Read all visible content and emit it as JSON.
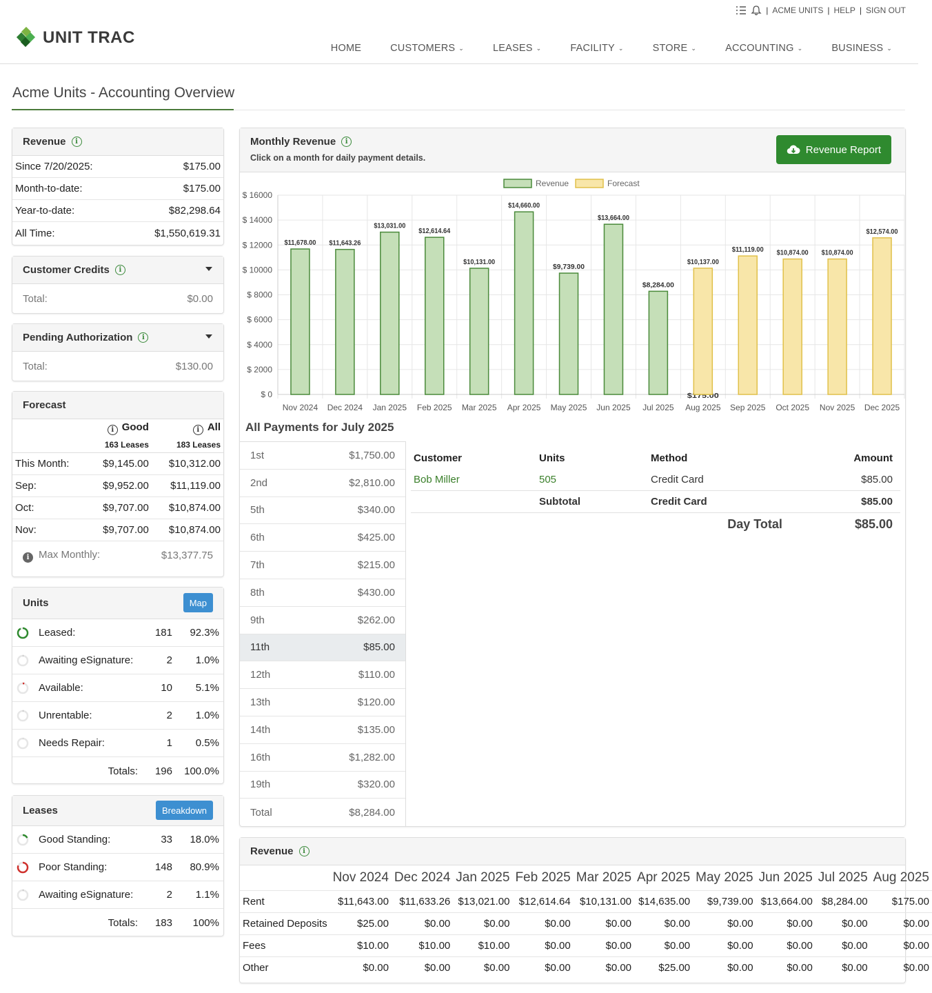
{
  "topbar": {
    "org": "ACME UNITS",
    "help": "HELP",
    "signout": "SIGN OUT",
    "icons": [
      "tasks-icon",
      "bell-icon"
    ]
  },
  "brand": {
    "name": "UNIT TRAC",
    "colors": {
      "primary": "#2f8a2f",
      "accent_blue": "#3d8fd1",
      "revenue_fill": "#c5dfb8",
      "revenue_stroke": "#4a8a3a",
      "forecast_fill": "#f8e6a9",
      "forecast_stroke": "#e0c04a"
    }
  },
  "nav": {
    "items": [
      "HOME",
      "CUSTOMERS",
      "LEASES",
      "FACILITY",
      "STORE",
      "ACCOUNTING",
      "BUSINESS"
    ]
  },
  "page": {
    "title": "Acme Units - Accounting Overview"
  },
  "revenue_panel": {
    "title": "Revenue",
    "rows": [
      {
        "label": "Since 7/20/2025:",
        "value": "$175.00"
      },
      {
        "label": "Month-to-date:",
        "value": "$175.00"
      },
      {
        "label": "Year-to-date:",
        "value": "$82,298.64"
      },
      {
        "label": "All Time:",
        "value": "$1,550,619.31"
      }
    ]
  },
  "credits": {
    "title": "Customer Credits",
    "total_label": "Total:",
    "total": "$0.00"
  },
  "pending": {
    "title": "Pending Authorization",
    "total_label": "Total:",
    "total": "$130.00"
  },
  "forecast": {
    "title": "Forecast",
    "col_good": "Good",
    "col_all": "All",
    "good_leases": "163 Leases",
    "all_leases": "183 Leases",
    "rows": [
      {
        "label": "This Month:",
        "good": "$9,145.00",
        "all": "$10,312.00"
      },
      {
        "label": "Sep:",
        "good": "$9,952.00",
        "all": "$11,119.00"
      },
      {
        "label": "Oct:",
        "good": "$9,707.00",
        "all": "$10,874.00"
      },
      {
        "label": "Nov:",
        "good": "$9,707.00",
        "all": "$10,874.00"
      }
    ],
    "max_label": "Max Monthly:",
    "max": "$13,377.75"
  },
  "units": {
    "title": "Units",
    "map_button": "Map",
    "rows": [
      {
        "label": "Leased:",
        "count": "181",
        "pct": "92.3%",
        "fraction": 0.923,
        "color": "#2f8a2f"
      },
      {
        "label": "Awaiting eSignature:",
        "count": "2",
        "pct": "1.0%",
        "fraction": 0.01,
        "color": "#888888"
      },
      {
        "label": "Available:",
        "count": "10",
        "pct": "5.1%",
        "fraction": 0.051,
        "color": "#d0312d"
      },
      {
        "label": "Unrentable:",
        "count": "2",
        "pct": "1.0%",
        "fraction": 0.01,
        "color": "#888888"
      },
      {
        "label": "Needs Repair:",
        "count": "1",
        "pct": "0.5%",
        "fraction": 0.005,
        "color": "#888888"
      }
    ],
    "totals_label": "Totals:",
    "totals_count": "196",
    "totals_pct": "100.0%"
  },
  "leases": {
    "title": "Leases",
    "breakdown_button": "Breakdown",
    "rows": [
      {
        "label": "Good Standing:",
        "count": "33",
        "pct": "18.0%",
        "fraction": 0.18,
        "color": "#2f8a2f"
      },
      {
        "label": "Poor Standing:",
        "count": "148",
        "pct": "80.9%",
        "fraction": 0.809,
        "color": "#d0312d"
      },
      {
        "label": "Awaiting eSignature:",
        "count": "2",
        "pct": "1.1%",
        "fraction": 0.011,
        "color": "#888888"
      }
    ],
    "totals_label": "Totals:",
    "totals_count": "183",
    "totals_pct": "100%"
  },
  "monthly": {
    "title": "Monthly Revenue",
    "subtitle": "Click on a month for daily payment details.",
    "report_button": "Revenue Report"
  },
  "chart_data": {
    "type": "bar",
    "title": "",
    "legend": [
      "Revenue",
      "Forecast"
    ],
    "legend_position": "top",
    "categories": [
      "Nov 2024",
      "Dec 2024",
      "Jan 2025",
      "Feb 2025",
      "Mar 2025",
      "Apr 2025",
      "May 2025",
      "Jun 2025",
      "Jul 2025",
      "Aug 2025",
      "Sep 2025",
      "Oct 2025",
      "Nov 2025",
      "Dec 2025"
    ],
    "series": [
      {
        "name": "Revenue",
        "values": [
          11678,
          11643.26,
          13031,
          12614.64,
          10131,
          14660,
          9739,
          13664,
          8284,
          175,
          null,
          null,
          null,
          null
        ],
        "labels": [
          "$11,678.00",
          "$11,643.26",
          "$13,031.00",
          "$12,614.64",
          "$10,131.00",
          "$14,660.00",
          "$9,739.00",
          "$13,664.00",
          "$8,284.00",
          "$175.00",
          "",
          "",
          "",
          ""
        ]
      },
      {
        "name": "Forecast",
        "values": [
          null,
          null,
          null,
          null,
          null,
          null,
          null,
          null,
          null,
          10137,
          11119,
          10874,
          10874,
          12574
        ],
        "labels": [
          "",
          "",
          "",
          "",
          "",
          "",
          "",
          "",
          "",
          "$10,137.00",
          "$11,119.00",
          "$10,874.00",
          "$10,874.00",
          "$12,574.00"
        ]
      }
    ],
    "ylim": [
      0,
      16000
    ],
    "yticks": [
      0,
      2000,
      4000,
      6000,
      8000,
      10000,
      12000,
      14000,
      16000
    ],
    "ytick_labels": [
      "$ 0",
      "$ 2000",
      "$ 4000",
      "$ 6000",
      "$ 8000",
      "$ 10000",
      "$ 12000",
      "$ 14000",
      "$ 16000"
    ],
    "grid": true
  },
  "payments": {
    "title": "All Payments for July 2025",
    "days": [
      {
        "day": "1st",
        "amount": "$1,750.00"
      },
      {
        "day": "2nd",
        "amount": "$2,810.00"
      },
      {
        "day": "5th",
        "amount": "$340.00"
      },
      {
        "day": "6th",
        "amount": "$425.00"
      },
      {
        "day": "7th",
        "amount": "$215.00"
      },
      {
        "day": "8th",
        "amount": "$430.00"
      },
      {
        "day": "9th",
        "amount": "$262.00"
      },
      {
        "day": "11th",
        "amount": "$85.00",
        "selected": true
      },
      {
        "day": "12th",
        "amount": "$110.00"
      },
      {
        "day": "13th",
        "amount": "$120.00"
      },
      {
        "day": "14th",
        "amount": "$135.00"
      },
      {
        "day": "16th",
        "amount": "$1,282.00"
      },
      {
        "day": "19th",
        "amount": "$320.00"
      },
      {
        "day": "Total",
        "amount": "$8,284.00"
      }
    ],
    "detail": {
      "headers": [
        "Customer",
        "Units",
        "Method",
        "Amount"
      ],
      "rows": [
        {
          "customer": "Bob Miller",
          "unit": "505",
          "method": "Credit Card",
          "amount": "$85.00"
        }
      ],
      "subtotal": {
        "label": "Subtotal",
        "method": "Credit Card",
        "amount": "$85.00"
      },
      "day_total_label": "Day Total",
      "day_total": "$85.00"
    }
  },
  "revenue_table": {
    "title": "Revenue",
    "months": [
      "Nov 2024",
      "Dec 2024",
      "Jan 2025",
      "Feb 2025",
      "Mar 2025",
      "Apr 2025",
      "May 2025",
      "Jun 2025",
      "Jul 2025",
      "Aug 2025"
    ],
    "rows": [
      {
        "label": "Rent",
        "values": [
          "$11,643.00",
          "$11,633.26",
          "$13,021.00",
          "$12,614.64",
          "$10,131.00",
          "$14,635.00",
          "$9,739.00",
          "$13,664.00",
          "$8,284.00",
          "$175.00"
        ]
      },
      {
        "label": "Retained Deposits",
        "values": [
          "$25.00",
          "$0.00",
          "$0.00",
          "$0.00",
          "$0.00",
          "$0.00",
          "$0.00",
          "$0.00",
          "$0.00",
          "$0.00"
        ]
      },
      {
        "label": "Fees",
        "values": [
          "$10.00",
          "$10.00",
          "$10.00",
          "$0.00",
          "$0.00",
          "$0.00",
          "$0.00",
          "$0.00",
          "$0.00",
          "$0.00"
        ]
      },
      {
        "label": "Other",
        "values": [
          "$0.00",
          "$0.00",
          "$0.00",
          "$0.00",
          "$0.00",
          "$25.00",
          "$0.00",
          "$0.00",
          "$0.00",
          "$0.00"
        ]
      }
    ]
  }
}
